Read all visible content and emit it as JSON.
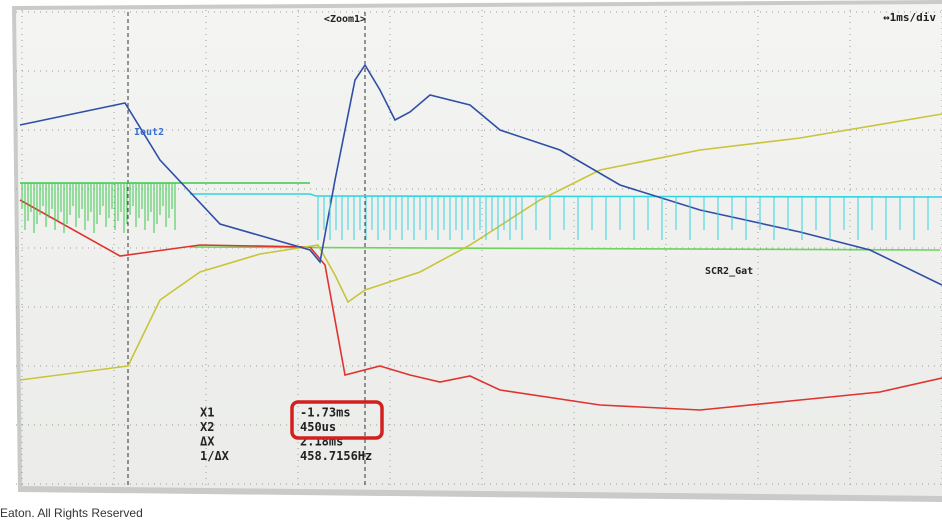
{
  "screen": {
    "zoom_label": "<Zoom1>",
    "timebase": "↔1ms/div",
    "trace_labels": [
      "Iout2",
      "SCR2_Gat"
    ],
    "cursors": {
      "rows": [
        [
          "X1",
          "-1.73ms"
        ],
        [
          "X2",
          "450us"
        ],
        [
          "ΔX",
          "2.18ms"
        ],
        [
          "1/ΔX",
          "458.7156Hz"
        ]
      ]
    }
  },
  "footer": "Eaton. All Rights Reserved"
}
